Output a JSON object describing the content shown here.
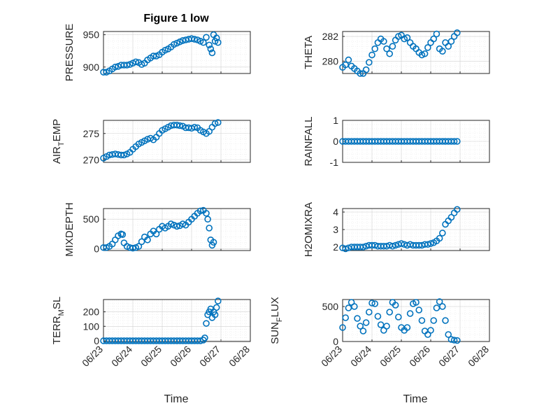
{
  "figure": {
    "title": "Figure 1 low",
    "marker_color": "#0072BD",
    "xlabel": "Time",
    "xticks": [
      "06/23",
      "06/24",
      "06/25",
      "06/26",
      "06/27",
      "06/28"
    ]
  },
  "chart_data": [
    {
      "type": "scatter",
      "ylabel": "PRESSURE",
      "xlim": [
        0,
        5
      ],
      "ylim": [
        890,
        955
      ],
      "yticks": [
        900,
        950
      ],
      "grid": "on",
      "x": [
        0.0,
        0.1,
        0.2,
        0.3,
        0.4,
        0.5,
        0.6,
        0.7,
        0.8,
        0.9,
        1.0,
        1.1,
        1.2,
        1.3,
        1.4,
        1.5,
        1.6,
        1.7,
        1.8,
        1.9,
        2.0,
        2.1,
        2.2,
        2.3,
        2.4,
        2.5,
        2.6,
        2.7,
        2.8,
        2.9,
        3.0,
        3.1,
        3.2,
        3.3,
        3.4,
        3.5,
        3.6,
        3.65,
        3.7,
        3.75,
        3.8,
        3.85,
        3.9
      ],
      "y": [
        892,
        892,
        894,
        897,
        900,
        901,
        903,
        903,
        903,
        904,
        906,
        908,
        907,
        904,
        906,
        911,
        914,
        917,
        917,
        919,
        923,
        926,
        928,
        931,
        935,
        937,
        939,
        941,
        942,
        943,
        944,
        943,
        942,
        940,
        938,
        946,
        934,
        928,
        922,
        950,
        940,
        945,
        938
      ]
    },
    {
      "type": "scatter",
      "ylabel": "THETA",
      "xlim": [
        0,
        5
      ],
      "ylim": [
        279,
        282.4
      ],
      "yticks": [
        280,
        282
      ],
      "grid": "on",
      "x": [
        0.0,
        0.1,
        0.2,
        0.3,
        0.4,
        0.5,
        0.6,
        0.7,
        0.8,
        0.9,
        1.0,
        1.1,
        1.2,
        1.3,
        1.4,
        1.5,
        1.6,
        1.7,
        1.8,
        1.9,
        2.0,
        2.1,
        2.2,
        2.3,
        2.4,
        2.5,
        2.6,
        2.7,
        2.8,
        2.9,
        3.0,
        3.1,
        3.2,
        3.3,
        3.4,
        3.5,
        3.6,
        3.7,
        3.8,
        3.9
      ],
      "y": [
        279.5,
        279.7,
        280.1,
        279.6,
        279.4,
        279.2,
        279.0,
        279.0,
        279.3,
        279.9,
        280.5,
        281.0,
        281.5,
        281.8,
        281.6,
        281.0,
        280.6,
        281.2,
        281.7,
        282.0,
        282.1,
        281.8,
        281.9,
        281.5,
        281.2,
        281.0,
        280.7,
        280.5,
        280.6,
        281.1,
        281.5,
        281.8,
        282.2,
        281.0,
        280.8,
        281.5,
        281.2,
        281.6,
        282.0,
        282.3
      ]
    },
    {
      "type": "scatter",
      "ylabel": "AIR_TEMP",
      "xlim": [
        0,
        5
      ],
      "ylim": [
        269.5,
        277.5
      ],
      "yticks": [
        270,
        275
      ],
      "grid": "on",
      "x": [
        0.0,
        0.1,
        0.2,
        0.3,
        0.4,
        0.5,
        0.6,
        0.7,
        0.8,
        0.9,
        1.0,
        1.1,
        1.2,
        1.3,
        1.4,
        1.5,
        1.6,
        1.7,
        1.8,
        1.9,
        2.0,
        2.1,
        2.2,
        2.3,
        2.4,
        2.5,
        2.6,
        2.7,
        2.8,
        2.9,
        3.0,
        3.1,
        3.2,
        3.3,
        3.4,
        3.5,
        3.6,
        3.7,
        3.8,
        3.9
      ],
      "y": [
        270.3,
        270.6,
        270.9,
        271.0,
        271.1,
        271.0,
        270.9,
        270.9,
        271.1,
        271.4,
        272.0,
        272.5,
        273.0,
        273.3,
        273.6,
        273.9,
        274.1,
        273.8,
        274.3,
        275.0,
        275.6,
        275.9,
        276.2,
        276.5,
        276.6,
        276.6,
        276.5,
        276.4,
        276.1,
        276.1,
        276.0,
        276.2,
        276.1,
        275.6,
        275.3,
        275.0,
        275.4,
        276.2,
        276.9,
        277.1
      ]
    },
    {
      "type": "scatter",
      "ylabel": "RAINFALL",
      "xlim": [
        0,
        5
      ],
      "ylim": [
        -1,
        1
      ],
      "yticks": [
        -1,
        0,
        1
      ],
      "grid": "on",
      "x": [
        0.0,
        0.1,
        0.2,
        0.3,
        0.4,
        0.5,
        0.6,
        0.7,
        0.8,
        0.9,
        1.0,
        1.1,
        1.2,
        1.3,
        1.4,
        1.5,
        1.6,
        1.7,
        1.8,
        1.9,
        2.0,
        2.1,
        2.2,
        2.3,
        2.4,
        2.5,
        2.6,
        2.7,
        2.8,
        2.9,
        3.0,
        3.1,
        3.2,
        3.3,
        3.4,
        3.5,
        3.6,
        3.7,
        3.8,
        3.9
      ],
      "y": [
        0,
        0,
        0,
        0,
        0,
        0,
        0,
        0,
        0,
        0,
        0,
        0,
        0,
        0,
        0,
        0,
        0,
        0,
        0,
        0,
        0,
        0,
        0,
        0,
        0,
        0,
        0,
        0,
        0,
        0,
        0,
        0,
        0,
        0,
        0,
        0,
        0,
        0,
        0,
        0
      ]
    },
    {
      "type": "scatter",
      "ylabel": "MIXDEPTH",
      "xlim": [
        0,
        5
      ],
      "ylim": [
        -30,
        680
      ],
      "yticks": [
        0,
        500
      ],
      "grid": "on",
      "x": [
        0.0,
        0.1,
        0.2,
        0.3,
        0.4,
        0.5,
        0.6,
        0.65,
        0.7,
        0.8,
        0.9,
        1.0,
        1.1,
        1.2,
        1.3,
        1.4,
        1.5,
        1.6,
        1.7,
        1.8,
        1.9,
        2.0,
        2.1,
        2.2,
        2.3,
        2.4,
        2.5,
        2.6,
        2.7,
        2.8,
        2.9,
        3.0,
        3.1,
        3.2,
        3.3,
        3.4,
        3.5,
        3.55,
        3.6,
        3.65,
        3.7,
        3.75
      ],
      "y": [
        20,
        20,
        40,
        80,
        150,
        220,
        250,
        240,
        100,
        40,
        20,
        10,
        20,
        40,
        120,
        200,
        150,
        250,
        300,
        250,
        330,
        380,
        350,
        380,
        420,
        400,
        380,
        390,
        420,
        400,
        450,
        500,
        550,
        600,
        640,
        650,
        600,
        500,
        350,
        150,
        60,
        110
      ]
    },
    {
      "type": "scatter",
      "ylabel": "H2OMIXRA",
      "xlim": [
        0,
        5
      ],
      "ylim": [
        1.8,
        4.2
      ],
      "yticks": [
        2,
        3,
        4
      ],
      "grid": "on",
      "x": [
        0.0,
        0.1,
        0.2,
        0.3,
        0.4,
        0.5,
        0.6,
        0.7,
        0.8,
        0.9,
        1.0,
        1.1,
        1.2,
        1.3,
        1.4,
        1.5,
        1.6,
        1.7,
        1.8,
        1.9,
        2.0,
        2.1,
        2.2,
        2.3,
        2.4,
        2.5,
        2.6,
        2.7,
        2.8,
        2.9,
        3.0,
        3.1,
        3.2,
        3.3,
        3.4,
        3.5,
        3.6,
        3.7,
        3.8,
        3.9
      ],
      "y": [
        1.95,
        1.9,
        1.95,
        2.0,
        2.0,
        2.0,
        2.0,
        2.0,
        2.05,
        2.1,
        2.1,
        2.1,
        2.05,
        2.05,
        2.05,
        2.05,
        2.1,
        2.05,
        2.1,
        2.15,
        2.2,
        2.15,
        2.1,
        2.15,
        2.1,
        2.1,
        2.1,
        2.1,
        2.15,
        2.15,
        2.2,
        2.25,
        2.35,
        2.5,
        2.8,
        3.3,
        3.5,
        3.7,
        3.95,
        4.15
      ]
    },
    {
      "type": "scatter",
      "ylabel": "TERR_MSL",
      "xlim": [
        0,
        5
      ],
      "ylim": [
        -5,
        285
      ],
      "yticks": [
        0,
        100,
        200
      ],
      "grid": "on",
      "x": [
        0.0,
        0.1,
        0.2,
        0.3,
        0.4,
        0.5,
        0.6,
        0.7,
        0.8,
        0.9,
        1.0,
        1.1,
        1.2,
        1.3,
        1.4,
        1.5,
        1.6,
        1.7,
        1.8,
        1.9,
        2.0,
        2.1,
        2.2,
        2.3,
        2.4,
        2.5,
        2.6,
        2.7,
        2.8,
        2.9,
        3.0,
        3.1,
        3.2,
        3.3,
        3.4,
        3.45,
        3.5,
        3.55,
        3.6,
        3.65,
        3.7,
        3.75,
        3.8,
        3.85,
        3.9
      ],
      "y": [
        0,
        0,
        0,
        0,
        0,
        0,
        0,
        0,
        0,
        0,
        0,
        0,
        0,
        0,
        0,
        0,
        0,
        0,
        0,
        0,
        0,
        0,
        0,
        0,
        0,
        0,
        0,
        0,
        0,
        0,
        0,
        0,
        0,
        0,
        5,
        20,
        120,
        180,
        200,
        220,
        160,
        200,
        180,
        230,
        275
      ]
    },
    {
      "type": "scatter",
      "ylabel": "SUN_FLUX",
      "xlim": [
        0,
        5
      ],
      "ylim": [
        0,
        600
      ],
      "yticks": [
        0,
        500
      ],
      "grid": "on",
      "x": [
        0.0,
        0.1,
        0.2,
        0.3,
        0.4,
        0.5,
        0.6,
        0.7,
        0.8,
        0.9,
        1.0,
        1.1,
        1.2,
        1.3,
        1.4,
        1.5,
        1.6,
        1.7,
        1.8,
        1.9,
        2.0,
        2.1,
        2.2,
        2.3,
        2.4,
        2.5,
        2.6,
        2.7,
        2.8,
        2.9,
        3.0,
        3.1,
        3.2,
        3.3,
        3.4,
        3.5,
        3.6,
        3.7,
        3.8,
        3.9
      ],
      "y": [
        200,
        340,
        480,
        560,
        500,
        330,
        220,
        150,
        270,
        420,
        550,
        540,
        360,
        240,
        160,
        220,
        420,
        560,
        520,
        350,
        200,
        160,
        200,
        400,
        540,
        560,
        450,
        300,
        150,
        100,
        160,
        300,
        480,
        570,
        500,
        300,
        100,
        30,
        20,
        15
      ]
    }
  ]
}
